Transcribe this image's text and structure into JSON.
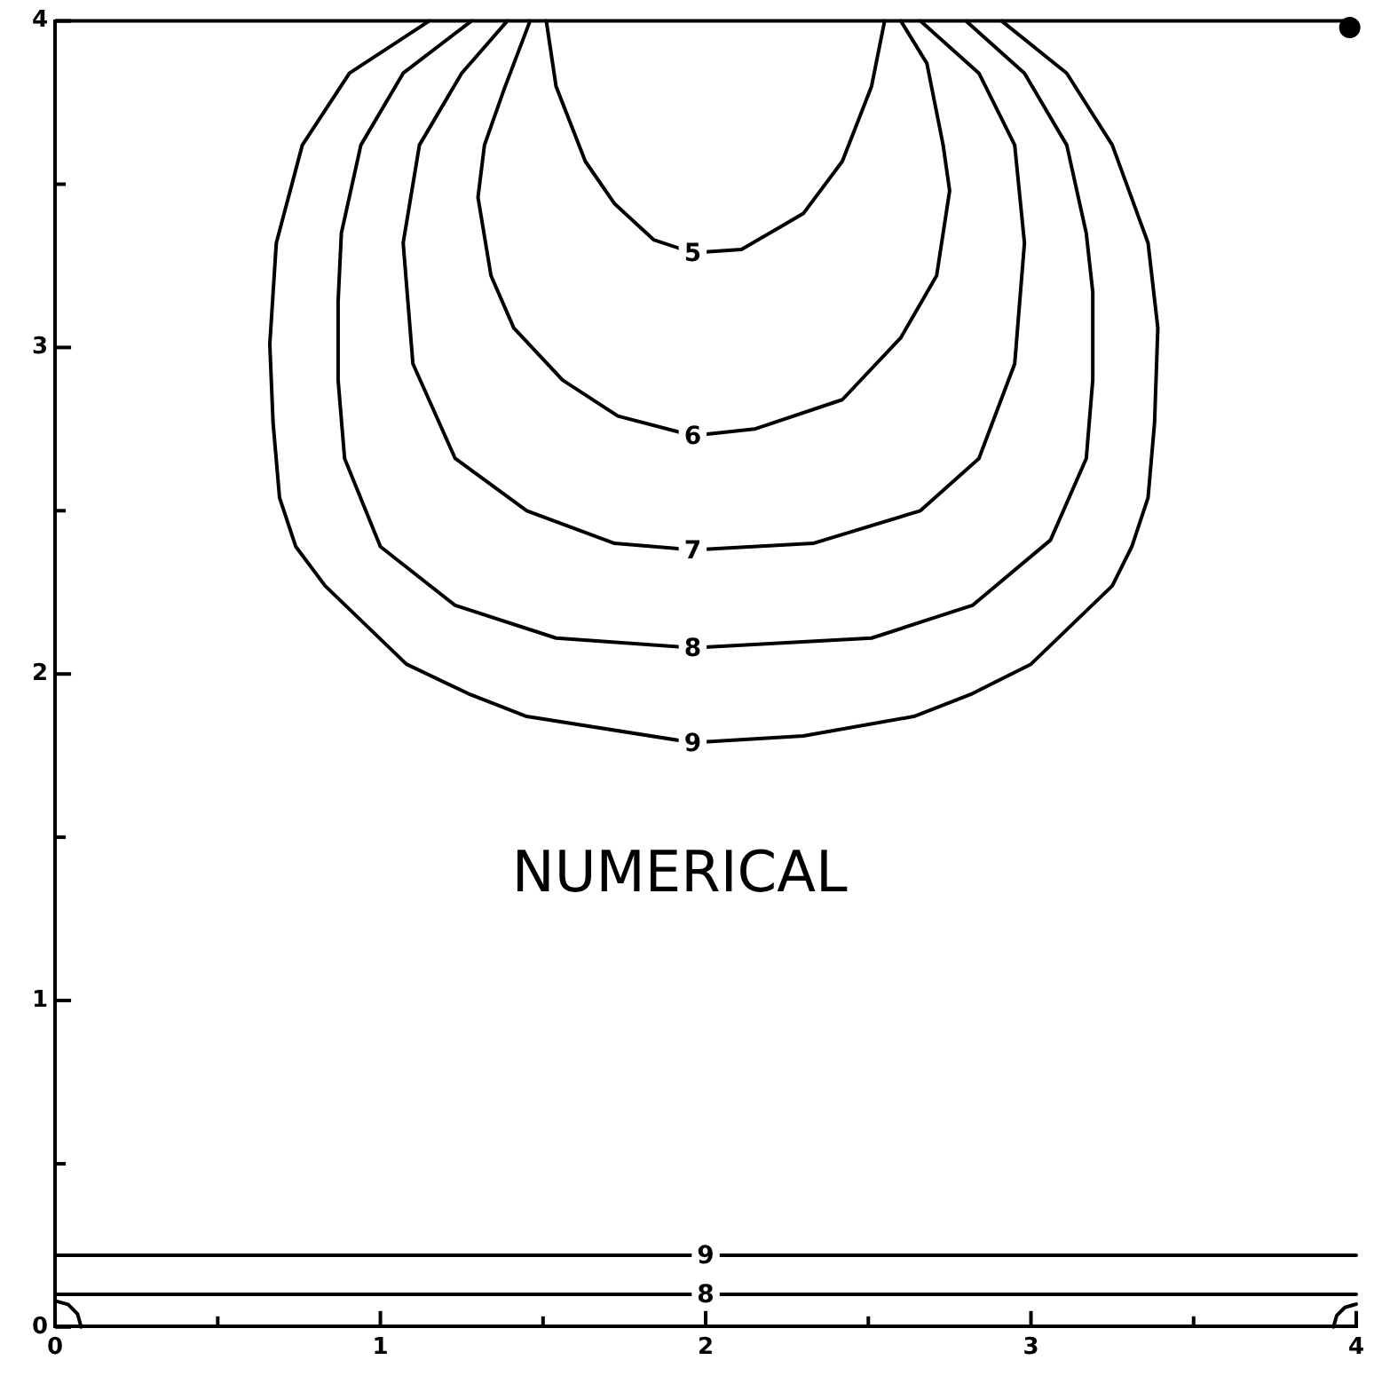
{
  "chart_data": {
    "type": "line",
    "xlim": [
      0,
      4
    ],
    "ylim": [
      0,
      4
    ],
    "xticks": [
      0,
      {
        "value": 0.5,
        "label": null
      },
      1,
      {
        "value": 1.5,
        "label": null
      },
      2,
      {
        "value": 2.5,
        "label": null
      },
      3,
      {
        "value": 3.5,
        "label": null
      },
      4
    ],
    "yticks": [
      0,
      {
        "value": 0.5,
        "label": null
      },
      1,
      {
        "value": 1.5,
        "label": null
      },
      2,
      {
        "value": 2.5,
        "label": null
      },
      3,
      {
        "value": 3.5,
        "label": null
      },
      4
    ],
    "grid": false,
    "legend": false,
    "marker": "none",
    "series": [
      {
        "name": "5",
        "color": "#000000",
        "x": [
          1.51,
          1.54,
          1.63,
          1.72,
          1.84,
          1.96,
          2.11,
          2.3,
          2.42,
          2.51,
          2.55
        ],
        "values": [
          4,
          3.8,
          3.57,
          3.44,
          3.33,
          3.29,
          3.3,
          3.41,
          3.57,
          3.8,
          4
        ]
      },
      {
        "name": "6",
        "color": "#000000",
        "x": [
          1.46,
          1.38,
          1.32,
          1.3,
          1.34,
          1.41,
          1.56,
          1.73,
          1.96,
          2.15,
          2.42,
          2.6,
          2.71,
          2.75,
          2.73,
          2.68,
          2.6
        ],
        "values": [
          4,
          3.79,
          3.62,
          3.46,
          3.22,
          3.06,
          2.9,
          2.79,
          2.73,
          2.75,
          2.84,
          3.03,
          3.22,
          3.48,
          3.62,
          3.87,
          4
        ]
      },
      {
        "name": "7",
        "color": "#000000",
        "x": [
          1.39,
          1.25,
          1.12,
          1.07,
          1.1,
          1.23,
          1.45,
          1.72,
          1.96,
          2.33,
          2.66,
          2.84,
          2.95,
          2.98,
          2.95,
          2.84,
          2.66
        ],
        "values": [
          4,
          3.84,
          3.62,
          3.32,
          2.95,
          2.66,
          2.5,
          2.4,
          2.38,
          2.4,
          2.5,
          2.66,
          2.95,
          3.32,
          3.62,
          3.84,
          4
        ]
      },
      {
        "name": "8",
        "color": "#000000",
        "x": [
          1.28,
          1.07,
          0.94,
          0.88,
          0.87,
          0.87,
          0.89,
          1.0,
          1.23,
          1.54,
          1.96,
          2.51,
          2.82,
          3.06,
          3.17,
          3.19,
          3.19,
          3.17,
          3.11,
          2.98,
          2.8
        ],
        "values": [
          4,
          3.84,
          3.62,
          3.35,
          3.14,
          2.9,
          2.66,
          2.39,
          2.21,
          2.11,
          2.08,
          2.11,
          2.21,
          2.41,
          2.66,
          2.9,
          3.17,
          3.35,
          3.62,
          3.84,
          4
        ]
      },
      {
        "name": "9",
        "color": "#000000",
        "x": [
          1.15,
          0.905,
          0.76,
          0.68,
          0.66,
          0.67,
          0.69,
          0.74,
          0.83,
          1.08,
          1.27,
          1.45,
          1.96,
          2.3,
          2.64,
          2.82,
          3.0,
          3.25,
          3.31,
          3.36,
          3.38,
          3.39,
          3.36,
          3.25,
          3.11,
          2.91
        ],
        "values": [
          4,
          3.84,
          3.62,
          3.32,
          3.01,
          2.77,
          2.54,
          2.39,
          2.27,
          2.03,
          1.94,
          1.87,
          1.79,
          1.81,
          1.87,
          1.94,
          2.03,
          2.27,
          2.39,
          2.54,
          2.77,
          3.06,
          3.32,
          3.62,
          3.84,
          4
        ]
      },
      {
        "name": "9",
        "color": "#000000",
        "x": [
          0,
          1,
          2,
          3,
          4
        ],
        "values": [
          0.22,
          0.22,
          0.22,
          0.22,
          0.22
        ]
      },
      {
        "name": "8",
        "color": "#000000",
        "x": [
          0,
          1,
          2,
          3,
          4
        ],
        "values": [
          0.1,
          0.1,
          0.1,
          0.1,
          0.1
        ]
      },
      {
        "color": "#000000",
        "x": [
          0.08,
          0.069,
          0.04,
          0
        ],
        "values": [
          0,
          0.04,
          0.069,
          0.08
        ]
      },
      {
        "color": "#000000",
        "x": [
          3.93,
          3.94,
          3.965,
          4
        ],
        "values": [
          0,
          0.035,
          0.06,
          0.07
        ]
      },
      {
        "type": "scatter",
        "marker": "circle",
        "color": "#000000",
        "x": [
          3.98
        ],
        "values": [
          3.98
        ]
      }
    ],
    "annotations": [
      "NUMERICAL"
    ]
  }
}
